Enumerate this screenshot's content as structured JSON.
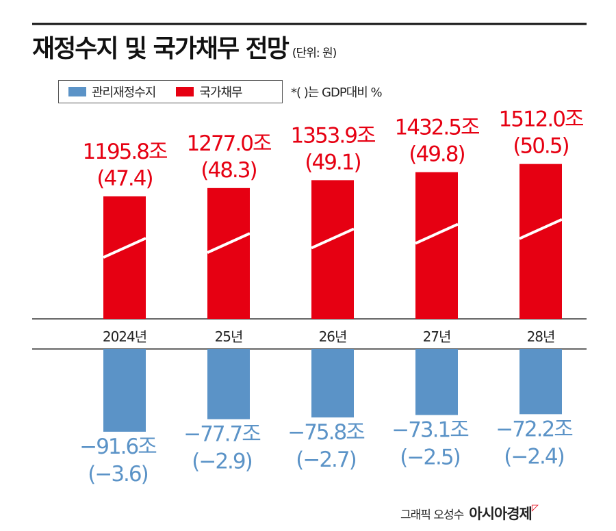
{
  "title": "재정수지 및 국가채무 전망",
  "unit": "(단위: 원)",
  "legend": {
    "balance": "관리재정수지",
    "debt": "국가채무"
  },
  "note": "*( )는 GDP대비 %",
  "credit": "그래픽 오성수",
  "brand": "아시아경제",
  "colors": {
    "debt": "#e60012",
    "balance": "#5b93c7"
  },
  "chart_data": {
    "type": "bar",
    "categories": [
      "2024년",
      "25년",
      "26년",
      "27년",
      "28년"
    ],
    "series": [
      {
        "name": "국가채무",
        "unit": "조",
        "values": [
          1195.8,
          1277.0,
          1353.9,
          1432.5,
          1512.0
        ],
        "gdp_pct": [
          47.4,
          48.3,
          49.1,
          49.8,
          50.5
        ],
        "labels": [
          "1195.8조",
          "1277.0조",
          "1353.9조",
          "1432.5조",
          "1512.0조"
        ],
        "pct_labels": [
          "(47.4)",
          "(48.3)",
          "(49.1)",
          "(49.8)",
          "(50.5)"
        ]
      },
      {
        "name": "관리재정수지",
        "unit": "조",
        "values": [
          -91.6,
          -77.7,
          -75.8,
          -73.1,
          -72.2
        ],
        "gdp_pct": [
          -3.6,
          -2.9,
          -2.7,
          -2.5,
          -2.4
        ],
        "labels": [
          "−91.6조",
          "−77.7조",
          "−75.8조",
          "−73.1조",
          "−72.2조"
        ],
        "pct_labels": [
          "(−3.6)",
          "(−2.9)",
          "(−2.7)",
          "(−2.5)",
          "(−2.4)"
        ]
      }
    ],
    "axis_broken": true,
    "legend_position": "top-left"
  }
}
